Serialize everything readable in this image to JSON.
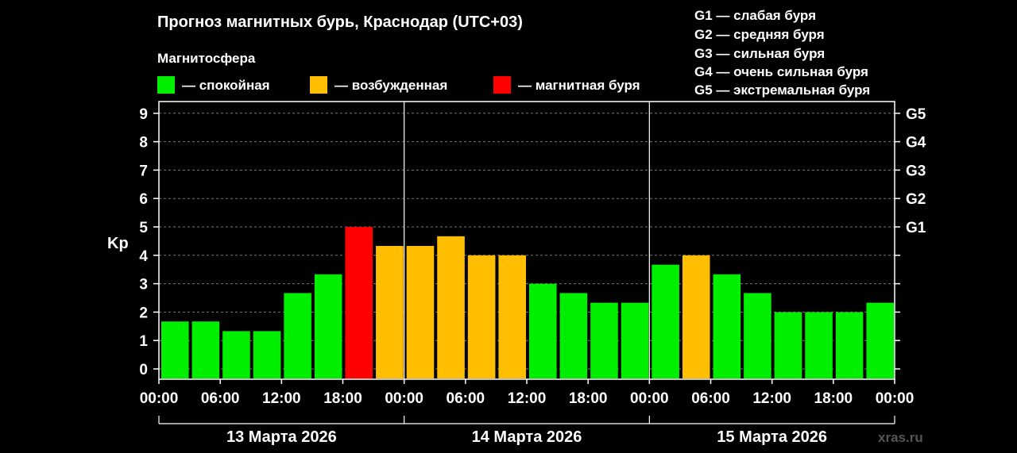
{
  "title": "Прогноз магнитных бурь, Краснодар (UTC+03)",
  "legend": {
    "heading": "Магнитосфера",
    "items": [
      {
        "label": "— спокойная",
        "color": "#00ee00"
      },
      {
        "label": "— возбужденная",
        "color": "#ffbf00"
      },
      {
        "label": "— магнитная буря",
        "color": "#ff0000"
      }
    ]
  },
  "g_scale": [
    {
      "code": "G1",
      "label": "G1 — слабая буря"
    },
    {
      "code": "G2",
      "label": "G2 — средняя буря"
    },
    {
      "code": "G3",
      "label": "G3 — сильная буря"
    },
    {
      "code": "G4",
      "label": "G4 — очень сильная буря"
    },
    {
      "code": "G5",
      "label": "G5 — экстремальная буря"
    }
  ],
  "watermark": "xras.ru",
  "chart_data": {
    "type": "bar",
    "ylabel": "Kp",
    "ylim": [
      0,
      9
    ],
    "yticks": [
      "0",
      "1",
      "2",
      "3",
      "4",
      "5",
      "6",
      "7",
      "8",
      "9"
    ],
    "right_ticks": [
      {
        "kp": 5,
        "label": "G1"
      },
      {
        "kp": 6,
        "label": "G2"
      },
      {
        "kp": 7,
        "label": "G3"
      },
      {
        "kp": 8,
        "label": "G4"
      },
      {
        "kp": 9,
        "label": "G5"
      }
    ],
    "xtick_labels": [
      "00:00",
      "06:00",
      "12:00",
      "18:00",
      "00:00",
      "06:00",
      "12:00",
      "18:00",
      "00:00",
      "06:00",
      "12:00",
      "18:00",
      "00:00"
    ],
    "days": [
      "13 Марта 2026",
      "14 Марта 2026",
      "15 Марта 2026"
    ],
    "grid": "horizontal dashed",
    "values": [
      1.67,
      1.67,
      1.33,
      1.33,
      2.67,
      3.33,
      5.0,
      4.33,
      4.33,
      4.67,
      4.0,
      4.0,
      3.0,
      2.67,
      2.33,
      2.33,
      3.67,
      4.0,
      3.33,
      2.67,
      2.0,
      2.0,
      2.0,
      2.33
    ],
    "levels": [
      "quiet",
      "quiet",
      "quiet",
      "quiet",
      "quiet",
      "quiet",
      "storm",
      "active",
      "active",
      "active",
      "active",
      "active",
      "quiet",
      "quiet",
      "quiet",
      "quiet",
      "quiet",
      "active",
      "quiet",
      "quiet",
      "quiet",
      "quiet",
      "quiet",
      "quiet"
    ],
    "level_colors": {
      "quiet": "#00ee00",
      "active": "#ffbf00",
      "storm": "#ff0000"
    }
  }
}
